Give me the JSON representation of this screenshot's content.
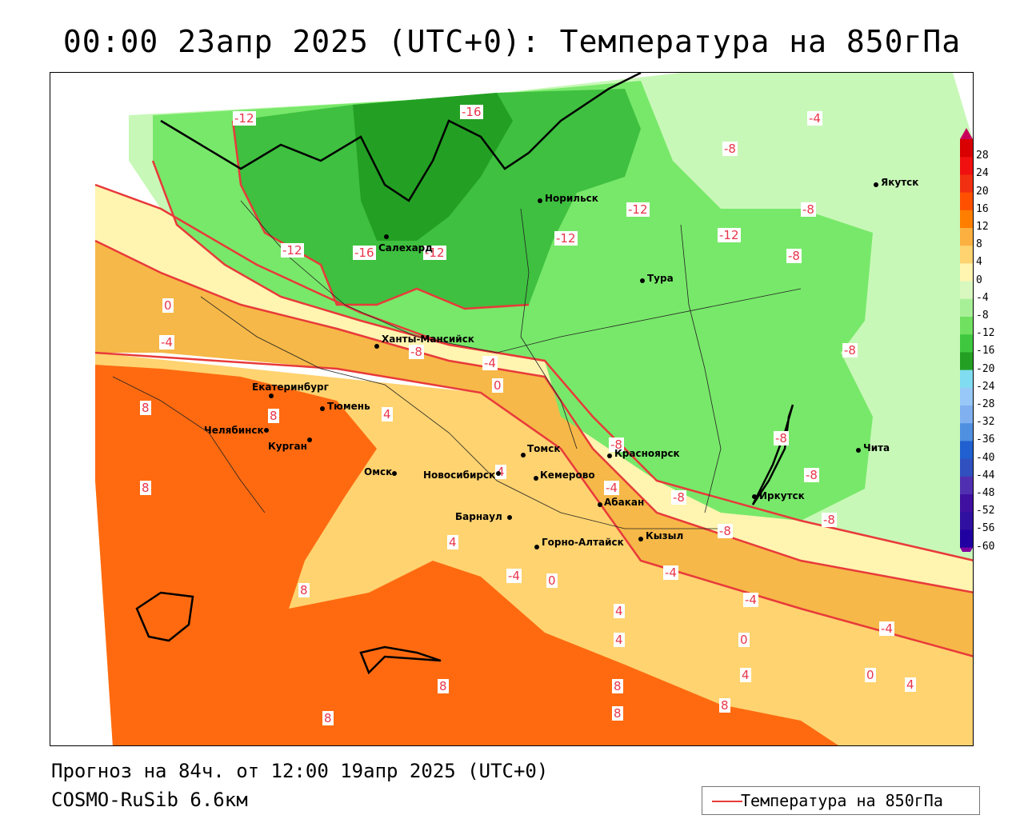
{
  "title": "00:00 23апр 2025 (UTC+0): Температура на 850гПа",
  "forecast_line": "Прогноз на 84ч. от 12:00 19апр 2025 (UTC+0)",
  "model_line": "COSMO-RuSib 6.6км",
  "legend": {
    "label": "Температура на 850гПа",
    "line_color": "#e83a3a"
  },
  "colorbar": {
    "ticks": [
      "28",
      "24",
      "20",
      "16",
      "12",
      "8",
      "4",
      "0",
      "-4",
      "-8",
      "-12",
      "-16",
      "-20",
      "-24",
      "-28",
      "-32",
      "-36",
      "-40",
      "-44",
      "-48",
      "-52",
      "-56",
      "-60"
    ],
    "colors": [
      "#c8005a",
      "#d80000",
      "#f01010",
      "#f03010",
      "#ff5000",
      "#ff7e00",
      "#fcb040",
      "#ffd370",
      "#fff4b0",
      "#d8f8c0",
      "#a8f098",
      "#70e060",
      "#3fc83f",
      "#23a023",
      "#80dcf0",
      "#98c8f8",
      "#80b0f0",
      "#5090e0",
      "#2060d0",
      "#3050c0",
      "#5030b0",
      "#4010a0",
      "#3010a0",
      "#2000a0",
      "#8000a0"
    ]
  },
  "cities": [
    {
      "name": "Якутск"
    },
    {
      "name": "Норильск"
    },
    {
      "name": "Салехард"
    },
    {
      "name": "Тура"
    },
    {
      "name": "Ханты-Мансийск"
    },
    {
      "name": "Екатеринбург"
    },
    {
      "name": "Тюмень"
    },
    {
      "name": "Челябинск"
    },
    {
      "name": "Курган"
    },
    {
      "name": "Омск"
    },
    {
      "name": "Новосибирск"
    },
    {
      "name": "Томск"
    },
    {
      "name": "Кемерово"
    },
    {
      "name": "Красноярск"
    },
    {
      "name": "Абакан"
    },
    {
      "name": "Барнаул"
    },
    {
      "name": "Горно-Алтайск"
    },
    {
      "name": "Кызыл"
    },
    {
      "name": "Иркутск"
    },
    {
      "name": "Чита"
    }
  ],
  "contour_labels": [
    "-12",
    "-16",
    "-4",
    "-8",
    "-8",
    "-12",
    "-12",
    "-12",
    "-16",
    "-12",
    "-12",
    "-8",
    "0",
    "-4",
    "-8",
    "-4",
    "0",
    "8",
    "8",
    "4",
    "-4",
    "-8",
    "-8",
    "-8",
    "-8",
    "-8",
    "-8",
    "-4",
    "-8",
    "8",
    "4",
    "4",
    "0",
    "-4",
    "-4",
    "-4",
    "0",
    "0",
    "4",
    "4",
    "8",
    "8",
    "8",
    "8",
    "8",
    "8",
    "4",
    "4"
  ]
}
